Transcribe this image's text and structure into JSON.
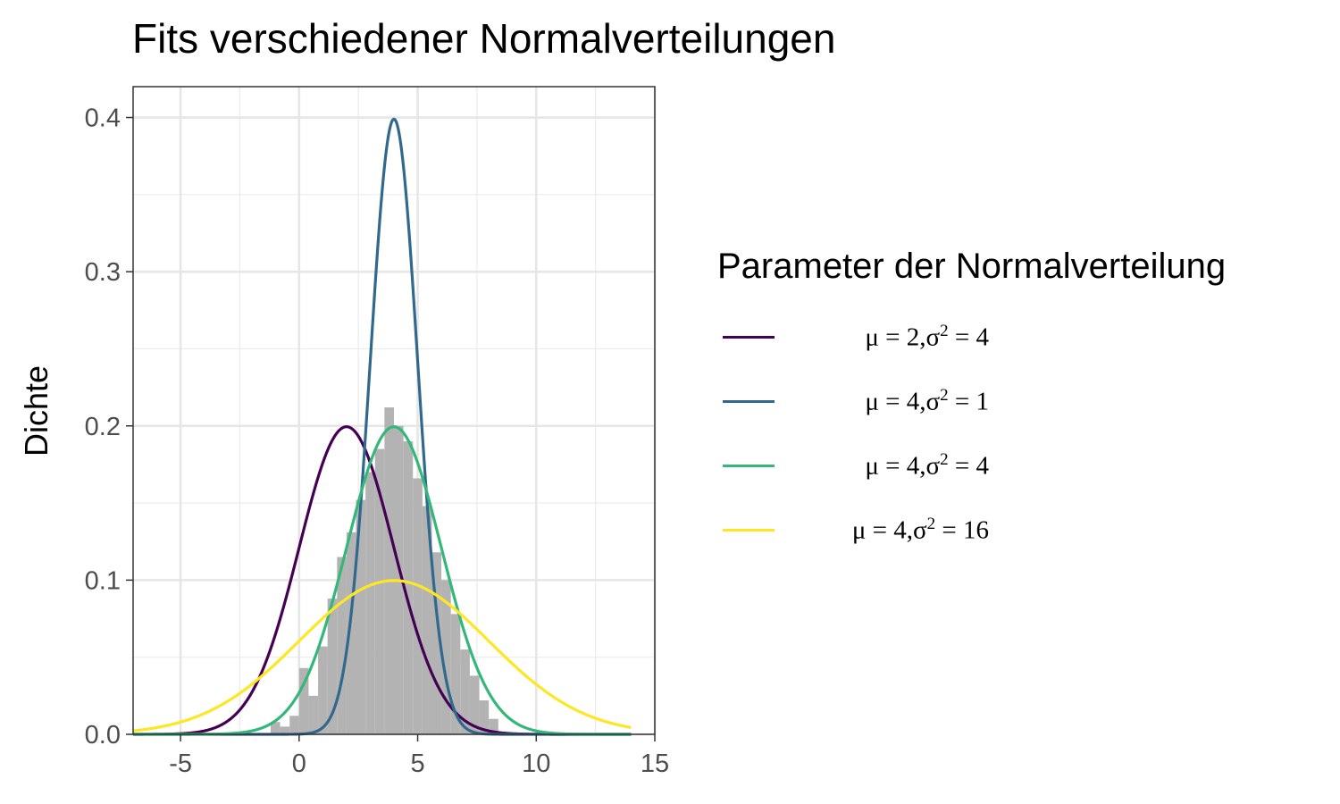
{
  "chart_data": {
    "type": "line",
    "title": "Fits verschiedener Normalverteilungen",
    "xlabel": "",
    "ylabel": "Dichte",
    "xlim": [
      -7,
      15
    ],
    "ylim": [
      0,
      0.42
    ],
    "x_ticks": [
      -5,
      0,
      5,
      10,
      15
    ],
    "x_tick_labels": [
      "-5",
      "0",
      "5",
      "10",
      "15"
    ],
    "y_ticks": [
      0.0,
      0.1,
      0.2,
      0.3,
      0.4
    ],
    "y_tick_labels": [
      "0.0",
      "0.1",
      "0.2",
      "0.3",
      "0.4"
    ],
    "grid": true,
    "legend_position": "right",
    "histogram": {
      "color": "#b3b3b3",
      "bin_width": 0.4,
      "bin_starts": [
        -1.2,
        -0.8,
        -0.4,
        0.0,
        0.4,
        0.8,
        1.2,
        1.6,
        2.0,
        2.4,
        2.8,
        3.2,
        3.6,
        4.0,
        4.4,
        4.8,
        5.2,
        5.6,
        6.0,
        6.4,
        6.8,
        7.2,
        7.6,
        8.0
      ],
      "densities": [
        0.008,
        0.005,
        0.012,
        0.043,
        0.025,
        0.057,
        0.088,
        0.115,
        0.131,
        0.152,
        0.17,
        0.185,
        0.212,
        0.2,
        0.19,
        0.166,
        0.148,
        0.118,
        0.1,
        0.078,
        0.055,
        0.038,
        0.022,
        0.01
      ]
    },
    "legend": {
      "title": "Parameter der Normalverteilung"
    },
    "series": [
      {
        "label_mu": "μ = 2,",
        "label_sigma": "σ",
        "label_sup": "2",
        "label_rest": " = 4",
        "mu": 2,
        "sigma2": 4,
        "color": "#440154",
        "x_range": [
          -7,
          14
        ]
      },
      {
        "label_mu": "μ = 4,",
        "label_sigma": "σ",
        "label_sup": "2",
        "label_rest": " = 1",
        "mu": 4,
        "sigma2": 1,
        "color": "#31688e",
        "x_range": [
          -7,
          14
        ]
      },
      {
        "label_mu": "μ = 4,",
        "label_sigma": "σ",
        "label_sup": "2",
        "label_rest": " = 4",
        "mu": 4,
        "sigma2": 4,
        "color": "#35b779",
        "x_range": [
          -7,
          14
        ]
      },
      {
        "label_mu": "μ = 4,",
        "label_sigma": "σ",
        "label_sup": "2",
        "label_rest": " = 16",
        "mu": 4,
        "sigma2": 16,
        "color": "#fde725",
        "x_range": [
          -7,
          14
        ]
      }
    ]
  }
}
